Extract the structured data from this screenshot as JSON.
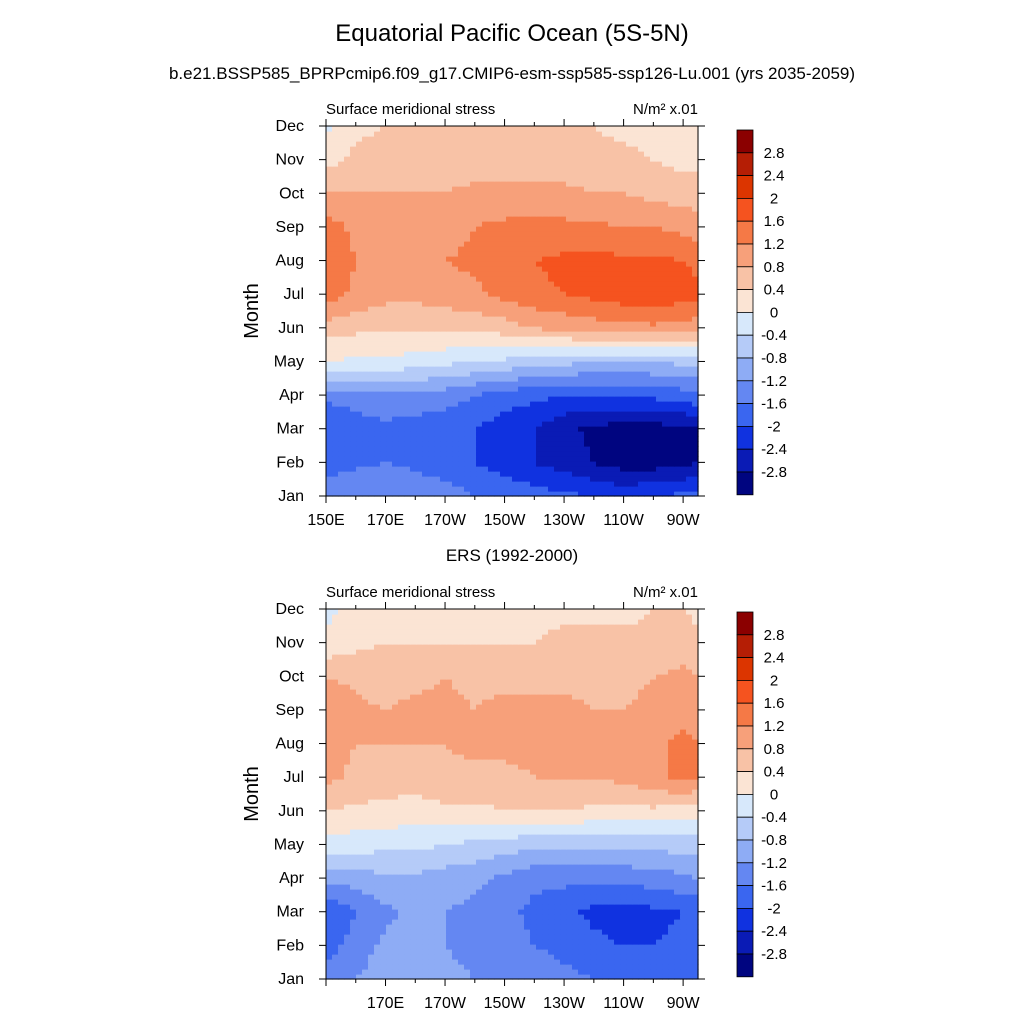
{
  "figure": {
    "title": "Equatorial Pacific Ocean (5S-5N)",
    "subtitle": "b.e21.BSSP585_BPRPcmip6.f09_g17.CMIP6-esm-ssp585-ssp126-Lu.001 (yrs 2035-2059)",
    "mid_title": "ERS (1992-2000)"
  },
  "colorbar": {
    "levels": [
      "2.8",
      "2.4",
      "2",
      "1.6",
      "1.2",
      "0.8",
      "0.4",
      "0",
      "-0.4",
      "-0.8",
      "-1.2",
      "-1.6",
      "-2",
      "-2.4",
      "-2.8"
    ],
    "colors_top_to_bottom": [
      "#8b0000",
      "#b51e05",
      "#dc3500",
      "#f5531f",
      "#f57946",
      "#f7a07a",
      "#f8c2a6",
      "#fbe4d4",
      "#d7e8fb",
      "#b5cbf8",
      "#8eacf5",
      "#6487f2",
      "#3a66f0",
      "#1032e0",
      "#0a1bb5",
      "#000580"
    ]
  },
  "chart_data": [
    {
      "type": "heatmap",
      "name": "model",
      "left_label": "Surface meridional stress",
      "right_label": "N/m² x.01",
      "ylabel": "Month",
      "x_ticks": [
        "150E",
        "170E",
        "170W",
        "150W",
        "130W",
        "110W",
        "90W"
      ],
      "x_values_deg": [
        150,
        170,
        190,
        210,
        230,
        250,
        270
      ],
      "xlim": [
        150,
        275
      ],
      "y_ticks": [
        "Jan",
        "Feb",
        "Mar",
        "Apr",
        "May",
        "Jun",
        "Jul",
        "Aug",
        "Sep",
        "Oct",
        "Nov",
        "Dec"
      ],
      "ylim": [
        1,
        12
      ],
      "contour_levels": [
        -2.8,
        -2.4,
        -2,
        -1.6,
        -1.2,
        -0.8,
        -0.4,
        0,
        0.4,
        0.8,
        1.2,
        1.6,
        2,
        2.4,
        2.8
      ],
      "grid_x": [
        150,
        160,
        170,
        180,
        190,
        200,
        210,
        220,
        230,
        240,
        250,
        260,
        270,
        275
      ],
      "grid_y_month": [
        1,
        2,
        3,
        4,
        5,
        6,
        7,
        8,
        9,
        10,
        11,
        12
      ],
      "values": [
        [
          -1.3,
          -1.2,
          -1.2,
          -1.3,
          -1.4,
          -1.6,
          -1.7,
          -1.8,
          -1.9,
          -2.0,
          -2.1,
          -2.0,
          -1.9,
          -1.8
        ],
        [
          -1.8,
          -1.7,
          -1.6,
          -1.7,
          -1.8,
          -2.0,
          -2.2,
          -2.4,
          -2.6,
          -2.8,
          -3.0,
          -3.0,
          -2.9,
          -2.8
        ],
        [
          -2.0,
          -1.8,
          -1.7,
          -1.8,
          -1.9,
          -2.0,
          -2.2,
          -2.4,
          -2.7,
          -2.9,
          -3.0,
          -3.0,
          -2.9,
          -2.8
        ],
        [
          -1.5,
          -1.4,
          -1.3,
          -1.3,
          -1.4,
          -1.6,
          -1.8,
          -1.9,
          -2.0,
          -2.0,
          -2.0,
          -1.9,
          -1.8,
          -1.7
        ],
        [
          0.0,
          -0.1,
          -0.1,
          -0.2,
          -0.3,
          -0.4,
          -0.5,
          -0.6,
          -0.7,
          -0.8,
          -0.8,
          -0.8,
          -0.7,
          -0.7
        ],
        [
          0.6,
          0.5,
          0.5,
          0.5,
          0.5,
          0.5,
          0.6,
          0.8,
          0.9,
          1.0,
          1.1,
          1.1,
          1.0,
          1.0
        ],
        [
          1.4,
          1.1,
          0.9,
          0.9,
          1.0,
          1.1,
          1.3,
          1.5,
          1.6,
          1.7,
          1.8,
          1.9,
          1.8,
          1.7
        ],
        [
          1.6,
          1.2,
          1.0,
          1.0,
          1.2,
          1.3,
          1.5,
          1.6,
          1.7,
          1.7,
          1.7,
          1.7,
          1.6,
          1.5
        ],
        [
          1.4,
          1.1,
          1.0,
          0.9,
          1.0,
          1.2,
          1.3,
          1.3,
          1.3,
          1.3,
          1.2,
          1.2,
          1.1,
          1.0
        ],
        [
          0.9,
          0.8,
          0.8,
          0.8,
          0.8,
          0.9,
          0.9,
          0.9,
          0.9,
          0.8,
          0.8,
          0.7,
          0.6,
          0.6
        ],
        [
          0.2,
          0.5,
          0.6,
          0.6,
          0.6,
          0.6,
          0.6,
          0.6,
          0.6,
          0.5,
          0.5,
          0.4,
          0.3,
          0.3
        ],
        [
          -0.1,
          0.3,
          0.4,
          0.4,
          0.4,
          0.5,
          0.5,
          0.4,
          0.4,
          0.4,
          0.3,
          0.3,
          0.2,
          0.2
        ]
      ]
    },
    {
      "type": "heatmap",
      "name": "ers",
      "left_label": "Surface meridional stress",
      "right_label": "N/m² x.01",
      "ylabel": "Month",
      "x_ticks": [
        "170E",
        "170W",
        "150W",
        "130W",
        "110W",
        "90W"
      ],
      "x_values_deg": [
        170,
        190,
        210,
        230,
        250,
        270
      ],
      "xlim": [
        150,
        275
      ],
      "y_ticks": [
        "Jan",
        "Feb",
        "Mar",
        "Apr",
        "May",
        "Jun",
        "Jul",
        "Aug",
        "Sep",
        "Oct",
        "Nov",
        "Dec"
      ],
      "ylim": [
        1,
        12
      ],
      "contour_levels": [
        -2.8,
        -2.4,
        -2,
        -1.6,
        -1.2,
        -0.8,
        -0.4,
        0,
        0.4,
        0.8,
        1.2,
        1.6,
        2,
        2.4,
        2.8
      ],
      "grid_x": [
        150,
        160,
        170,
        180,
        190,
        200,
        210,
        220,
        230,
        240,
        250,
        260,
        270,
        275
      ],
      "grid_y_month": [
        1,
        2,
        3,
        4,
        5,
        6,
        7,
        8,
        9,
        10,
        11,
        12
      ],
      "values": [
        [
          -1.4,
          -1.2,
          -1.0,
          -1.0,
          -1.1,
          -1.2,
          -1.3,
          -1.4,
          -1.5,
          -1.6,
          -1.7,
          -1.8,
          -1.7,
          -1.6
        ],
        [
          -1.8,
          -1.4,
          -1.1,
          -1.1,
          -1.2,
          -1.3,
          -1.4,
          -1.6,
          -1.7,
          -1.9,
          -2.0,
          -2.0,
          -1.9,
          -1.8
        ],
        [
          -2.0,
          -1.6,
          -1.3,
          -1.1,
          -1.2,
          -1.3,
          -1.5,
          -1.7,
          -1.9,
          -2.1,
          -2.2,
          -2.1,
          -2.0,
          -1.9
        ],
        [
          -1.1,
          -1.0,
          -0.9,
          -0.9,
          -1.0,
          -1.1,
          -1.3,
          -1.5,
          -1.5,
          -1.5,
          -1.5,
          -1.4,
          -1.3,
          -1.2
        ],
        [
          -0.2,
          -0.2,
          -0.3,
          -0.3,
          -0.4,
          -0.5,
          -0.6,
          -0.7,
          -0.7,
          -0.7,
          -0.7,
          -0.7,
          -0.6,
          -0.6
        ],
        [
          0.4,
          0.3,
          0.3,
          0.2,
          0.3,
          0.3,
          0.4,
          0.4,
          0.4,
          0.3,
          0.3,
          0.3,
          0.2,
          0.2
        ],
        [
          0.9,
          0.7,
          0.6,
          0.6,
          0.7,
          0.7,
          0.7,
          0.8,
          0.8,
          0.8,
          0.9,
          1.1,
          1.3,
          1.2
        ],
        [
          1.0,
          0.8,
          0.8,
          0.8,
          0.8,
          0.9,
          0.9,
          0.9,
          0.9,
          0.9,
          0.9,
          1.1,
          1.3,
          1.2
        ],
        [
          1.2,
          0.9,
          0.8,
          0.9,
          0.9,
          0.8,
          0.9,
          0.9,
          0.9,
          0.8,
          0.8,
          1.0,
          1.1,
          1.0
        ],
        [
          0.8,
          0.7,
          0.6,
          0.7,
          0.8,
          0.7,
          0.7,
          0.7,
          0.7,
          0.7,
          0.6,
          0.8,
          0.9,
          0.8
        ],
        [
          0.1,
          0.3,
          0.4,
          0.4,
          0.4,
          0.4,
          0.4,
          0.4,
          0.5,
          0.5,
          0.5,
          0.5,
          0.6,
          0.5
        ],
        [
          -0.1,
          0.1,
          0.1,
          0.1,
          0.2,
          0.2,
          0.2,
          0.3,
          0.3,
          0.3,
          0.3,
          0.4,
          0.4,
          0.3
        ]
      ]
    }
  ]
}
